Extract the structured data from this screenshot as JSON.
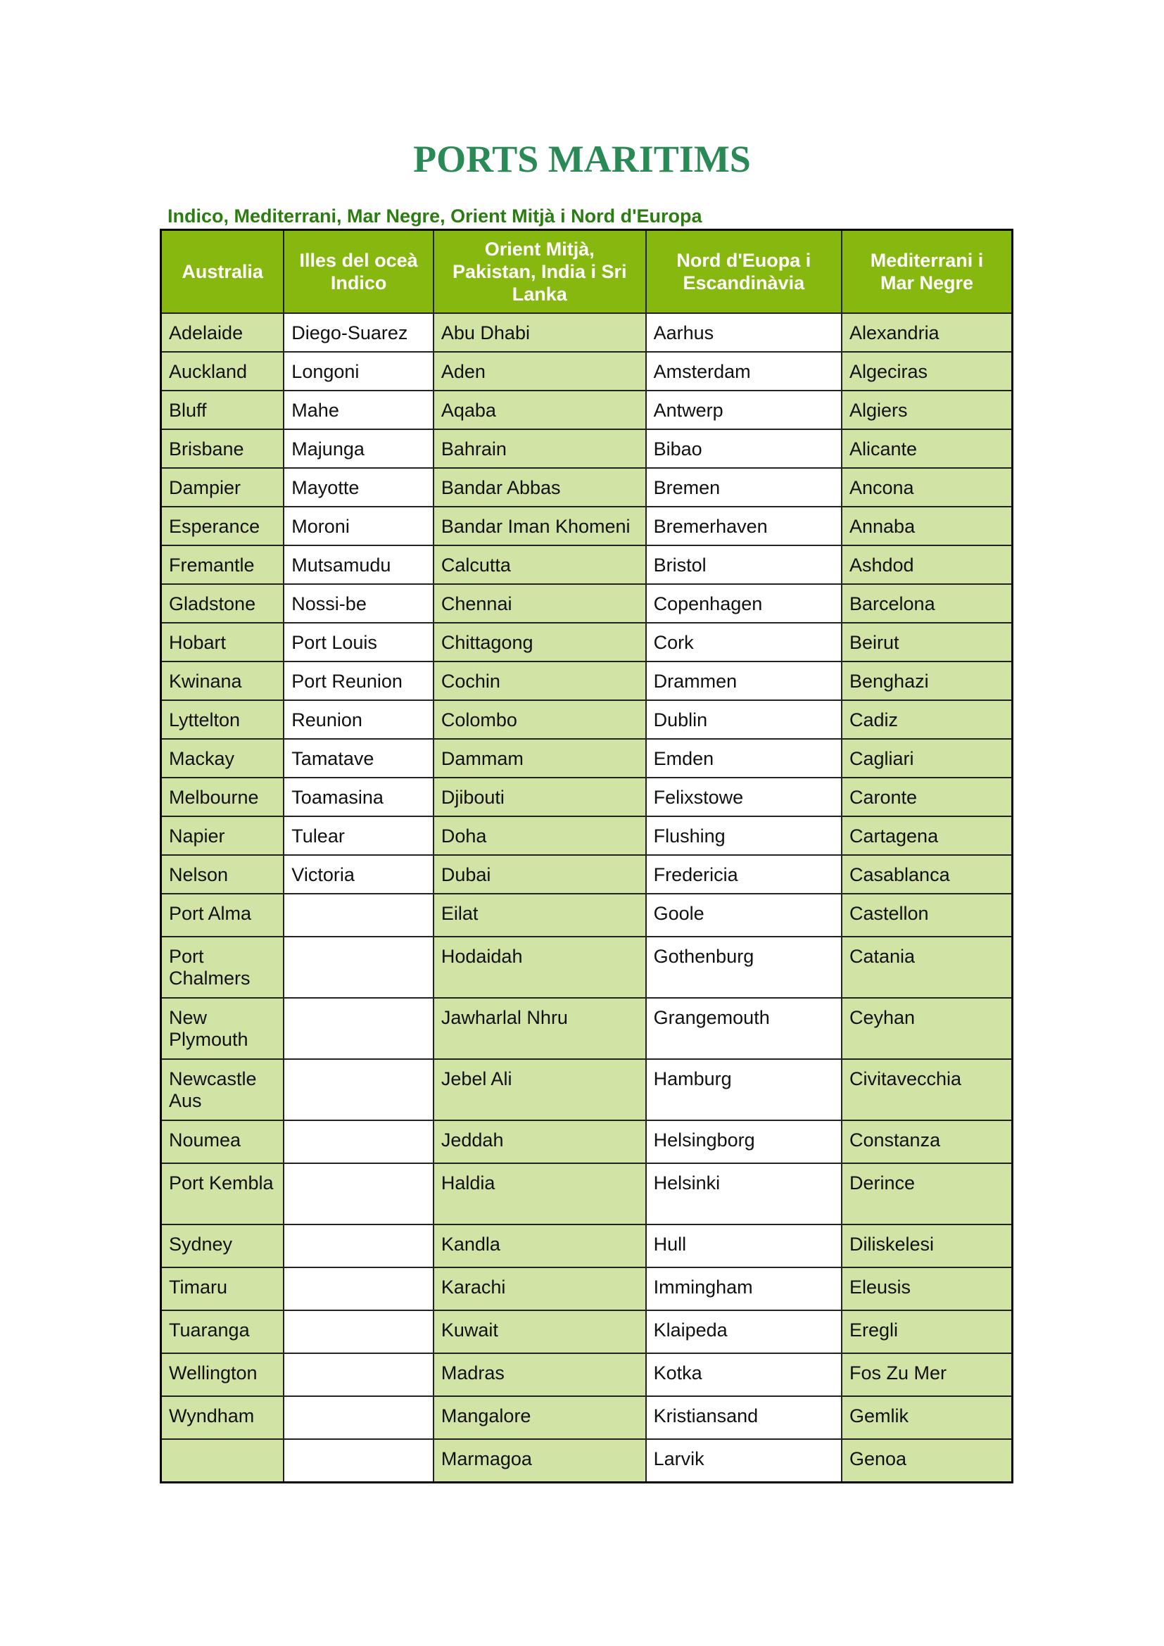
{
  "title": "PORTS MARITIMS",
  "subtitle": "Indico, Mediterrani, Mar Negre, Orient Mitjà i Nord d'Europa",
  "colors": {
    "title": "#2a8a55",
    "subtitle": "#2b7d12",
    "header_bg": "#86b80f",
    "shaded_column": "#d2e4a5"
  },
  "table": {
    "headers": [
      "Australia",
      "Illes del oceà Indico",
      "Orient Mitjà, Pakistan, India i Sri Lanka",
      "Nord d'Euopa i Escandinàvia",
      "Mediterrani i Mar Negre"
    ],
    "rows": [
      [
        "Adelaide",
        "Diego-Suarez",
        "Abu Dhabi",
        "Aarhus",
        "Alexandria"
      ],
      [
        "Auckland",
        "Longoni",
        "Aden",
        "Amsterdam",
        "Algeciras"
      ],
      [
        "Bluff",
        "Mahe",
        "Aqaba",
        "Antwerp",
        "Algiers"
      ],
      [
        "Brisbane",
        "Majunga",
        "Bahrain",
        "Bibao",
        "Alicante"
      ],
      [
        "Dampier",
        "Mayotte",
        "Bandar Abbas",
        "Bremen",
        "Ancona"
      ],
      [
        "Esperance",
        "Moroni",
        "Bandar Iman Khomeni",
        "Bremerhaven",
        "Annaba"
      ],
      [
        "Fremantle",
        "Mutsamudu",
        "Calcutta",
        "Bristol",
        "Ashdod"
      ],
      [
        "Gladstone",
        "Nossi-be",
        "Chennai",
        "Copenhagen",
        "Barcelona"
      ],
      [
        "Hobart",
        "Port Louis",
        "Chittagong",
        "Cork",
        "Beirut"
      ],
      [
        "Kwinana",
        "Port Reunion",
        "Cochin",
        "Drammen",
        "Benghazi"
      ],
      [
        "Lyttelton",
        "Reunion",
        "Colombo",
        "Dublin",
        "Cadiz"
      ],
      [
        "Mackay",
        "Tamatave",
        "Dammam",
        "Emden",
        "Cagliari"
      ],
      [
        "Melbourne",
        "Toamasina",
        "Djibouti",
        "Felixstowe",
        "Caronte"
      ],
      [
        "Napier",
        "Tulear",
        "Doha",
        "Flushing",
        "Cartagena"
      ],
      [
        "Nelson",
        "Victoria",
        "Dubai",
        "Fredericia",
        "Casablanca"
      ],
      [
        "Port Alma",
        "",
        "Eilat",
        "Goole",
        "Castellon"
      ],
      [
        "Port Chalmers",
        "",
        "Hodaidah",
        "Gothenburg",
        "Catania"
      ],
      [
        "New Plymouth",
        "",
        "Jawharlal Nhru",
        "Grangemouth",
        "Ceyhan"
      ],
      [
        "Newcastle Aus",
        "",
        "Jebel Ali",
        "Hamburg",
        "Civitavecchia"
      ],
      [
        "Noumea",
        "",
        "Jeddah",
        "Helsingborg",
        "Constanza"
      ],
      [
        "Port Kembla",
        "",
        "Haldia",
        "Helsinki",
        "Derince"
      ],
      [
        "Sydney",
        "",
        "Kandla",
        "Hull",
        "Diliskelesi"
      ],
      [
        "Timaru",
        "",
        "Karachi",
        "Immingham",
        "Eleusis"
      ],
      [
        "Tuaranga",
        "",
        "Kuwait",
        "Klaipeda",
        "Eregli"
      ],
      [
        "Wellington",
        "",
        "Madras",
        "Kotka",
        "Fos Zu Mer"
      ],
      [
        "Wyndham",
        "",
        "Mangalore",
        "Kristiansand",
        "Gemlik"
      ],
      [
        "",
        "",
        "Marmagoa",
        "Larvik",
        "Genoa"
      ]
    ]
  }
}
